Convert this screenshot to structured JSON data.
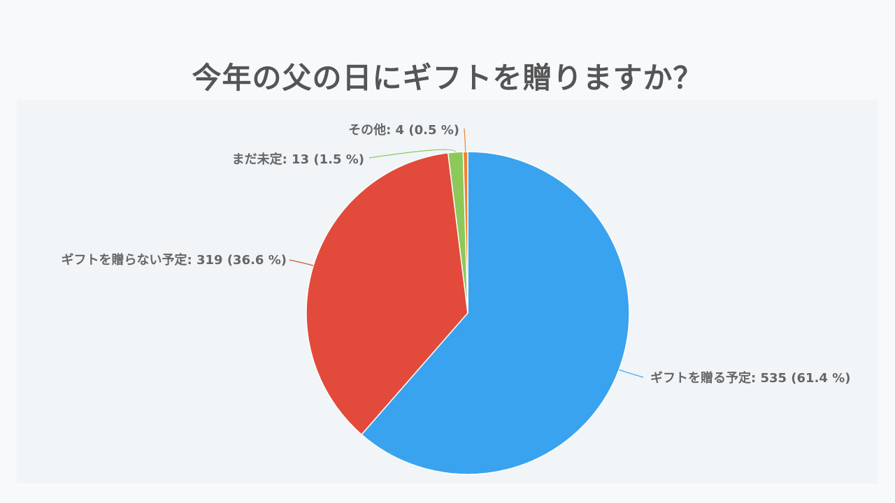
{
  "chart_data": {
    "type": "pie",
    "title": "今年の父の日にギフトを贈りますか？",
    "slices": [
      {
        "label": "ギフトを贈る予定",
        "value": 535,
        "percent": 61.4,
        "color": "#3aa3f0",
        "data_label": "ギフトを贈る予定: 535 (61.4 %)"
      },
      {
        "label": "ギフトを贈らない予定",
        "value": 319,
        "percent": 36.6,
        "color": "#e24b3b",
        "data_label": "ギフトを贈らない予定: 319 (36.6 %)"
      },
      {
        "label": "まだ未定",
        "value": 13,
        "percent": 1.5,
        "color": "#8cc95a",
        "data_label": "まだ未定: 13 (1.5 %)"
      },
      {
        "label": "その他",
        "value": 4,
        "percent": 0.5,
        "color": "#f0832f",
        "data_label": "その他: 4 (0.5 %)"
      }
    ],
    "start_angle": "12 o'clock",
    "direction": "clockwise",
    "legend": "none",
    "colors": {
      "background": "#f7f9fb",
      "text": "#666666",
      "title": "#555555"
    }
  }
}
